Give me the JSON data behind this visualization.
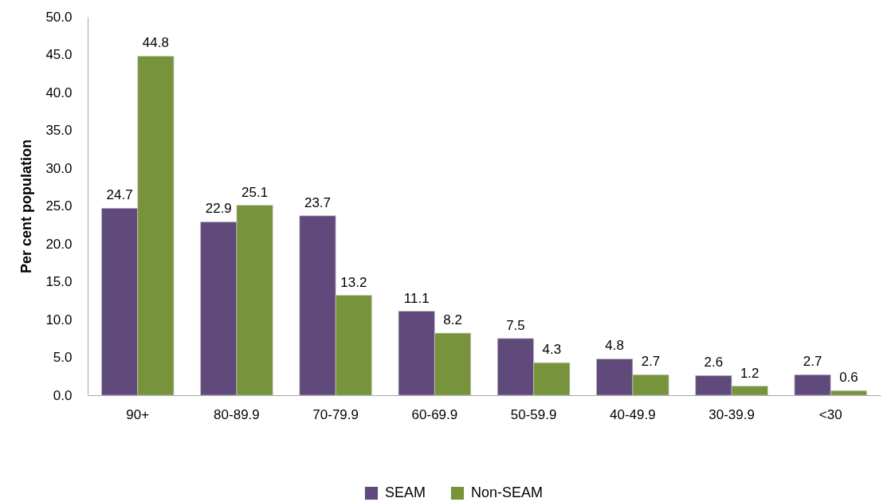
{
  "chart_data": {
    "type": "bar",
    "categories": [
      "90+",
      "80-89.9",
      "70-79.9",
      "60-69.9",
      "50-59.9",
      "40-49.9",
      "30-39.9",
      "<30"
    ],
    "series": [
      {
        "name": "SEAM",
        "color": "#604a7b",
        "values": [
          24.7,
          22.9,
          23.7,
          11.1,
          7.5,
          4.8,
          2.6,
          2.7
        ]
      },
      {
        "name": "Non-SEAM",
        "color": "#77933c",
        "values": [
          44.8,
          25.1,
          13.2,
          8.2,
          4.3,
          2.7,
          1.2,
          0.6
        ]
      }
    ],
    "ylabel": "Per cent population",
    "ylim": [
      0,
      50
    ],
    "yticks": [
      {
        "value": 0,
        "label": "0.0"
      },
      {
        "value": 5,
        "label": "5.0"
      },
      {
        "value": 10,
        "label": "10.0"
      },
      {
        "value": 15,
        "label": "15.0"
      },
      {
        "value": 20,
        "label": "20.0"
      },
      {
        "value": 25,
        "label": "25.0"
      },
      {
        "value": 30,
        "label": "30.0"
      },
      {
        "value": 35,
        "label": "35.0"
      },
      {
        "value": 40,
        "label": "40.0"
      },
      {
        "value": 45,
        "label": "45.0"
      },
      {
        "value": 50,
        "label": "50.0"
      }
    ],
    "data_labels": true,
    "grid": false,
    "legend": "bottom"
  }
}
